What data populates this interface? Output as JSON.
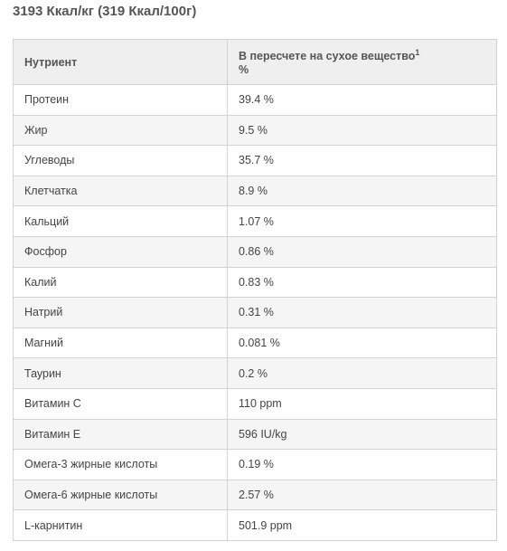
{
  "title": "3193 Ккал/кг (319 Ккал/100г)",
  "table": {
    "header": {
      "nutrient": "Нутриент",
      "value": "В пересчете на сухое вещество",
      "footnote": "1",
      "unit": "%"
    },
    "rows": [
      [
        "Протеин",
        "39.4 %"
      ],
      [
        "Жир",
        "9.5 %"
      ],
      [
        "Углеводы",
        "35.7 %"
      ],
      [
        "Клетчатка",
        "8.9 %"
      ],
      [
        "Кальций",
        "1.07 %"
      ],
      [
        "Фосфор",
        "0.86 %"
      ],
      [
        "Калий",
        "0.83 %"
      ],
      [
        "Натрий",
        "0.31 %"
      ],
      [
        "Магний",
        "0.081 %"
      ],
      [
        "Таурин",
        "0.2 %"
      ],
      [
        "Витамин C",
        "110 ppm"
      ],
      [
        "Витамин E",
        "596 IU/kg"
      ],
      [
        "Омега-3 жирные кислоты",
        "0.19 %"
      ],
      [
        "Омега-6 жирные кислоты",
        "2.57 %"
      ],
      [
        "L-карнитин",
        "501.9 ppm"
      ]
    ]
  }
}
